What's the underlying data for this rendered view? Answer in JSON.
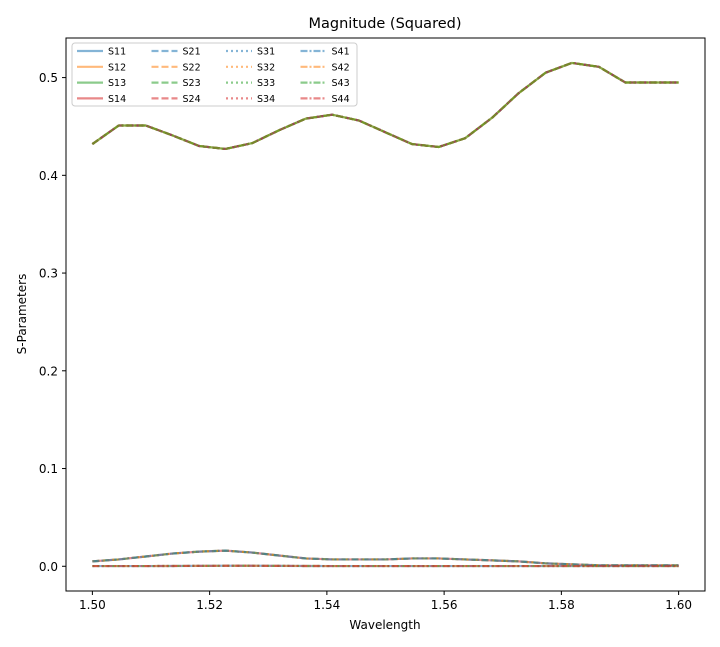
{
  "chart_data": {
    "type": "line",
    "title": "Magnitude (Squared)",
    "xlabel": "Wavelength",
    "ylabel": "S-Parameters",
    "xlim": [
      1.4955,
      1.6045
    ],
    "ylim": [
      -0.0253,
      0.5405
    ],
    "xticks": [
      1.5,
      1.52,
      1.54,
      1.56,
      1.58,
      1.6
    ],
    "xtick_labels": [
      "1.50",
      "1.52",
      "1.54",
      "1.56",
      "1.58",
      "1.60"
    ],
    "yticks": [
      0.0,
      0.1,
      0.2,
      0.3,
      0.4,
      0.5
    ],
    "ytick_labels": [
      "0.0",
      "0.1",
      "0.2",
      "0.3",
      "0.4",
      "0.5"
    ],
    "grid": false,
    "legend_position": "top-left",
    "legend_columns": 4,
    "x": [
      1.5,
      1.5045,
      1.5091,
      1.5136,
      1.5182,
      1.5227,
      1.5273,
      1.5318,
      1.5364,
      1.5409,
      1.5455,
      1.55,
      1.5545,
      1.5591,
      1.5636,
      1.5682,
      1.5727,
      1.5773,
      1.5818,
      1.5864,
      1.5909,
      1.5955,
      1.6
    ],
    "series": [
      {
        "name": "S11",
        "color": "#1f77b4",
        "dash": "solid",
        "values": [
          0.0002,
          0.0002,
          0.0002,
          0.0003,
          0.0004,
          0.0005,
          0.0005,
          0.0004,
          0.0003,
          0.0002,
          0.0002,
          0.0002,
          0.0002,
          0.0002,
          0.0002,
          0.0002,
          0.0002,
          0.0002,
          0.0002,
          0.0002,
          0.0002,
          0.0002,
          0.0002
        ]
      },
      {
        "name": "S12",
        "color": "#ff7f0e",
        "dash": "solid",
        "values": [
          0.432,
          0.451,
          0.451,
          0.441,
          0.43,
          0.427,
          0.433,
          0.446,
          0.458,
          0.462,
          0.456,
          0.444,
          0.432,
          0.429,
          0.438,
          0.459,
          0.484,
          0.505,
          0.515,
          0.511,
          0.495,
          0.495,
          0.495
        ]
      },
      {
        "name": "S13",
        "color": "#2ca02c",
        "dash": "solid",
        "values": [
          0.432,
          0.451,
          0.451,
          0.441,
          0.43,
          0.427,
          0.433,
          0.446,
          0.458,
          0.462,
          0.456,
          0.444,
          0.432,
          0.429,
          0.438,
          0.459,
          0.484,
          0.505,
          0.515,
          0.511,
          0.495,
          0.495,
          0.495
        ]
      },
      {
        "name": "S14",
        "color": "#d62728",
        "dash": "solid",
        "values": [
          0.005,
          0.007,
          0.01,
          0.013,
          0.015,
          0.016,
          0.014,
          0.011,
          0.008,
          0.007,
          0.007,
          0.007,
          0.008,
          0.008,
          0.007,
          0.006,
          0.005,
          0.003,
          0.002,
          0.001,
          0.001,
          0.001,
          0.001
        ]
      },
      {
        "name": "S21",
        "color": "#1f77b4",
        "dash": "dashed",
        "values": [
          0.432,
          0.451,
          0.451,
          0.441,
          0.43,
          0.427,
          0.433,
          0.446,
          0.458,
          0.462,
          0.456,
          0.444,
          0.432,
          0.429,
          0.438,
          0.459,
          0.484,
          0.505,
          0.515,
          0.511,
          0.495,
          0.495,
          0.495
        ]
      },
      {
        "name": "S22",
        "color": "#ff7f0e",
        "dash": "dashed",
        "values": [
          0.0002,
          0.0002,
          0.0002,
          0.0003,
          0.0004,
          0.0005,
          0.0005,
          0.0004,
          0.0003,
          0.0002,
          0.0002,
          0.0002,
          0.0002,
          0.0002,
          0.0002,
          0.0002,
          0.0002,
          0.0002,
          0.0002,
          0.0002,
          0.0002,
          0.0002,
          0.0002
        ]
      },
      {
        "name": "S23",
        "color": "#2ca02c",
        "dash": "dashed",
        "values": [
          0.005,
          0.007,
          0.01,
          0.013,
          0.015,
          0.016,
          0.014,
          0.011,
          0.008,
          0.007,
          0.007,
          0.007,
          0.008,
          0.008,
          0.007,
          0.006,
          0.005,
          0.003,
          0.002,
          0.001,
          0.001,
          0.001,
          0.001
        ]
      },
      {
        "name": "S24",
        "color": "#d62728",
        "dash": "dashed",
        "values": [
          0.432,
          0.451,
          0.451,
          0.441,
          0.43,
          0.427,
          0.433,
          0.446,
          0.458,
          0.462,
          0.456,
          0.444,
          0.432,
          0.429,
          0.438,
          0.459,
          0.484,
          0.505,
          0.515,
          0.511,
          0.495,
          0.495,
          0.495
        ]
      },
      {
        "name": "S31",
        "color": "#1f77b4",
        "dash": "dotted",
        "values": [
          0.432,
          0.451,
          0.451,
          0.441,
          0.43,
          0.427,
          0.433,
          0.446,
          0.458,
          0.462,
          0.456,
          0.444,
          0.432,
          0.429,
          0.438,
          0.459,
          0.484,
          0.505,
          0.515,
          0.511,
          0.495,
          0.495,
          0.495
        ]
      },
      {
        "name": "S32",
        "color": "#ff7f0e",
        "dash": "dotted",
        "values": [
          0.005,
          0.007,
          0.01,
          0.013,
          0.015,
          0.016,
          0.014,
          0.011,
          0.008,
          0.007,
          0.007,
          0.007,
          0.008,
          0.008,
          0.007,
          0.006,
          0.005,
          0.003,
          0.002,
          0.001,
          0.001,
          0.001,
          0.001
        ]
      },
      {
        "name": "S33",
        "color": "#2ca02c",
        "dash": "dotted",
        "values": [
          0.0002,
          0.0002,
          0.0002,
          0.0003,
          0.0004,
          0.0005,
          0.0005,
          0.0004,
          0.0003,
          0.0002,
          0.0002,
          0.0002,
          0.0002,
          0.0002,
          0.0002,
          0.0002,
          0.0002,
          0.0002,
          0.0002,
          0.0002,
          0.0002,
          0.0002,
          0.0002
        ]
      },
      {
        "name": "S34",
        "color": "#d62728",
        "dash": "dotted",
        "values": [
          0.432,
          0.451,
          0.451,
          0.441,
          0.43,
          0.427,
          0.433,
          0.446,
          0.458,
          0.462,
          0.456,
          0.444,
          0.432,
          0.429,
          0.438,
          0.459,
          0.484,
          0.505,
          0.515,
          0.511,
          0.495,
          0.495,
          0.495
        ]
      },
      {
        "name": "S41",
        "color": "#1f77b4",
        "dash": "dashdot",
        "values": [
          0.005,
          0.007,
          0.01,
          0.013,
          0.015,
          0.016,
          0.014,
          0.011,
          0.008,
          0.007,
          0.007,
          0.007,
          0.008,
          0.008,
          0.007,
          0.006,
          0.005,
          0.003,
          0.002,
          0.001,
          0.001,
          0.001,
          0.001
        ]
      },
      {
        "name": "S42",
        "color": "#ff7f0e",
        "dash": "dashdot",
        "values": [
          0.432,
          0.451,
          0.451,
          0.441,
          0.43,
          0.427,
          0.433,
          0.446,
          0.458,
          0.462,
          0.456,
          0.444,
          0.432,
          0.429,
          0.438,
          0.459,
          0.484,
          0.505,
          0.515,
          0.511,
          0.495,
          0.495,
          0.495
        ]
      },
      {
        "name": "S43",
        "color": "#2ca02c",
        "dash": "dashdot",
        "values": [
          0.432,
          0.451,
          0.451,
          0.441,
          0.43,
          0.427,
          0.433,
          0.446,
          0.458,
          0.462,
          0.456,
          0.444,
          0.432,
          0.429,
          0.438,
          0.459,
          0.484,
          0.505,
          0.515,
          0.511,
          0.495,
          0.495,
          0.495
        ]
      },
      {
        "name": "S44",
        "color": "#d62728",
        "dash": "dashdot",
        "values": [
          0.0002,
          0.0002,
          0.0002,
          0.0003,
          0.0004,
          0.0005,
          0.0005,
          0.0004,
          0.0003,
          0.0002,
          0.0002,
          0.0002,
          0.0002,
          0.0002,
          0.0002,
          0.0002,
          0.0002,
          0.0002,
          0.0002,
          0.0002,
          0.0002,
          0.0002,
          0.0002
        ]
      }
    ]
  }
}
